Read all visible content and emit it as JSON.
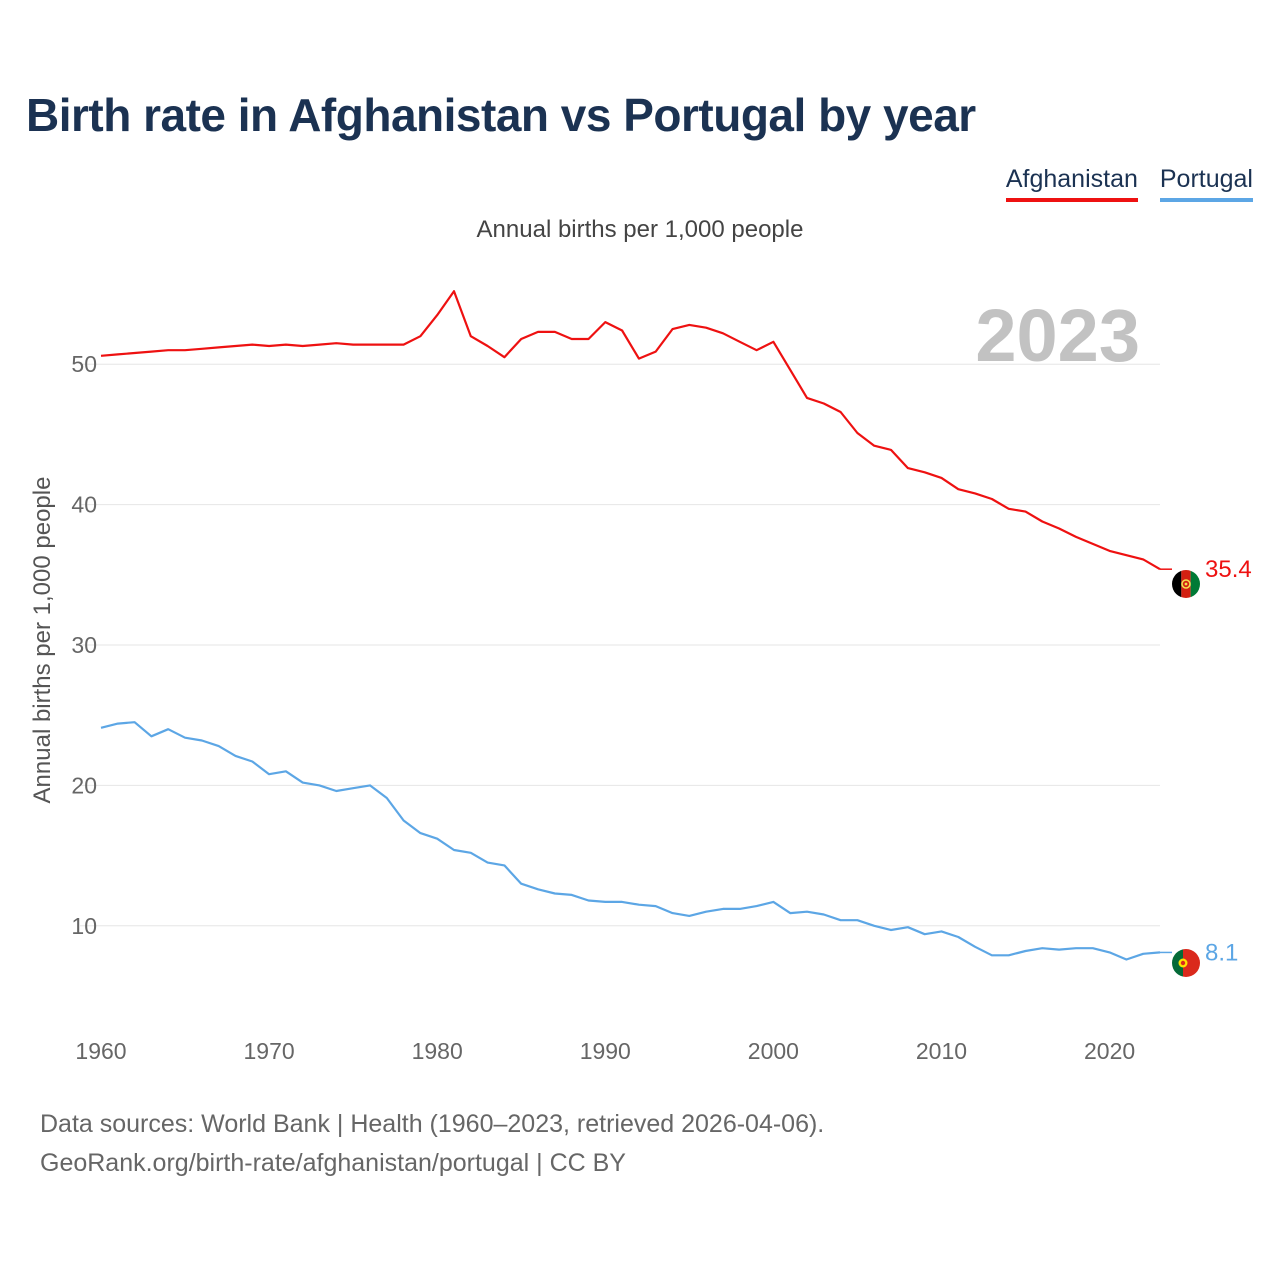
{
  "chart_data": {
    "type": "line",
    "title": "Birth rate in Afghanistan vs Portugal by year",
    "subtitle": "Annual births per 1,000 people",
    "ylabel": "Annual births per 1,000 people",
    "xlabel": "",
    "year_watermark": "2023",
    "xlim": [
      1960,
      2023
    ],
    "ylim": [
      4,
      56
    ],
    "x_ticks": [
      1960,
      1970,
      1980,
      1990,
      2000,
      2010,
      2020
    ],
    "y_ticks": [
      10,
      20,
      30,
      40,
      50
    ],
    "grid": true,
    "legend_position": "top-right",
    "x": [
      1960,
      1961,
      1962,
      1963,
      1964,
      1965,
      1966,
      1967,
      1968,
      1969,
      1970,
      1971,
      1972,
      1973,
      1974,
      1975,
      1976,
      1977,
      1978,
      1979,
      1980,
      1981,
      1982,
      1983,
      1984,
      1985,
      1986,
      1987,
      1988,
      1989,
      1990,
      1991,
      1992,
      1993,
      1994,
      1995,
      1996,
      1997,
      1998,
      1999,
      2000,
      2001,
      2002,
      2003,
      2004,
      2005,
      2006,
      2007,
      2008,
      2009,
      2010,
      2011,
      2012,
      2013,
      2014,
      2015,
      2016,
      2017,
      2018,
      2019,
      2020,
      2021,
      2022,
      2023
    ],
    "series": [
      {
        "name": "Afghanistan",
        "color": "#ee1111",
        "end_label": "35.4",
        "values": [
          50.6,
          50.7,
          50.8,
          50.9,
          51.0,
          51.0,
          51.1,
          51.2,
          51.3,
          51.4,
          51.3,
          51.4,
          51.3,
          51.4,
          51.5,
          51.4,
          51.4,
          51.4,
          51.4,
          52.0,
          53.5,
          55.2,
          52.0,
          51.3,
          50.5,
          51.8,
          52.3,
          52.3,
          51.8,
          51.8,
          53.0,
          52.4,
          50.4,
          50.9,
          52.5,
          52.8,
          52.6,
          52.2,
          51.6,
          51.0,
          51.6,
          49.6,
          47.6,
          47.2,
          46.6,
          45.1,
          44.2,
          43.9,
          42.6,
          42.3,
          41.9,
          41.1,
          40.8,
          40.4,
          39.7,
          39.5,
          38.8,
          38.3,
          37.7,
          37.2,
          36.7,
          36.4,
          36.1,
          35.4
        ]
      },
      {
        "name": "Portugal",
        "color": "#5ca6e5",
        "end_label": "8.1",
        "values": [
          24.1,
          24.4,
          24.5,
          23.5,
          24.0,
          23.4,
          23.2,
          22.8,
          22.1,
          21.7,
          20.8,
          21.0,
          20.2,
          20.0,
          19.6,
          19.8,
          20.0,
          19.1,
          17.5,
          16.6,
          16.2,
          15.4,
          15.2,
          14.5,
          14.3,
          13.0,
          12.6,
          12.3,
          12.2,
          11.8,
          11.7,
          11.7,
          11.5,
          11.4,
          10.9,
          10.7,
          11.0,
          11.2,
          11.2,
          11.4,
          11.7,
          10.9,
          11.0,
          10.8,
          10.4,
          10.4,
          10.0,
          9.7,
          9.9,
          9.4,
          9.6,
          9.2,
          8.5,
          7.9,
          7.9,
          8.2,
          8.4,
          8.3,
          8.4,
          8.4,
          8.1,
          7.6,
          8.0,
          8.1
        ]
      }
    ]
  },
  "footer": {
    "line1": "Data sources: World Bank | Health (1960–2023, retrieved 2026-04-06).",
    "line2": "GeoRank.org/birth-rate/afghanistan/portugal | CC BY"
  }
}
